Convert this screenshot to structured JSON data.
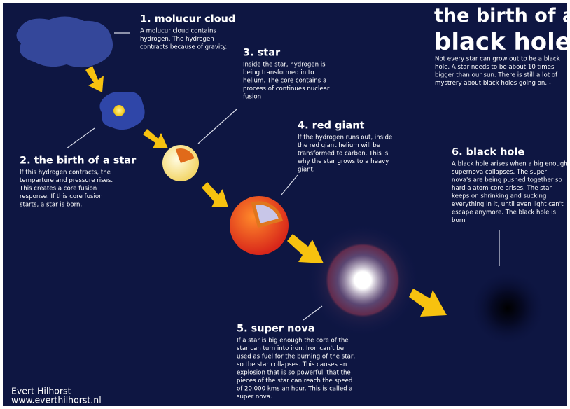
{
  "title_lines": [
    "the birth of a",
    "black hole"
  ],
  "intro_lines": [
    "Not every star can grow out to be a black",
    "hole. A star needs to be about 10 times",
    "bigger than our sun. There is still a lot of",
    "mystrery about black holes going on. -"
  ],
  "stages": [
    {
      "title": "1. molucur cloud",
      "lines": [
        "A molucur cloud contains",
        "hydrogen. The hydrogen",
        "contracts because of gravity."
      ]
    },
    {
      "title": "2. the birth of a star",
      "lines": [
        "If this hydrogen contracts, the",
        "temparture and pressure rises.",
        "This creates a core fusion",
        "response. If this core fusion",
        "starts, a star is born."
      ]
    },
    {
      "title": "3. star",
      "lines": [
        "Inside the star, hydrogen is",
        "being transformed in to",
        "helium. The core contains a",
        "process of continues nuclear",
        "fusion"
      ]
    },
    {
      "title": "4. red giant",
      "lines": [
        "If the hydrogen runs out, inside",
        "the red giant helium will be",
        "transformed to carbon. This is",
        "why the star grows to a heavy",
        "giant."
      ]
    },
    {
      "title": "5. super nova",
      "lines": [
        "If a star is big enough the core of the",
        "star can turn into iron. Iron can't be",
        "used as fuel for the burning of the star,",
        "so the star collapses. This causes an",
        "explosion that is so powerfull that the",
        "pieces of the star can reach the speed",
        "of 20.000 kms an hour. This is called a",
        "super nova."
      ]
    },
    {
      "title": "6. black hole",
      "lines": [
        "A black hole arises when a big enough",
        "supernova collapses. The super",
        "nova's are being pushed together so",
        "hard a atom core arises. The star",
        "keeps on shrinking and sucking",
        "everything in it, until even light can't",
        "escape anymore. The black hole is",
        "born"
      ]
    }
  ],
  "credit": {
    "name": "Evert Hilhorst",
    "url": "www.everthilhorst.nl"
  }
}
